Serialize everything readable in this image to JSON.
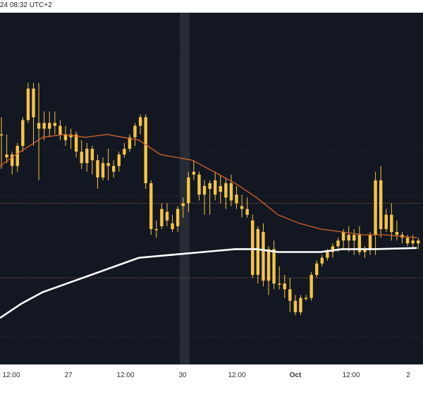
{
  "header": {
    "timestamp": "24 08:32 UTC+2"
  },
  "colors": {
    "background": "#131722",
    "candle_fill": "#f5c542",
    "candle_wick": "#f5c542",
    "ma_fast": "#d2622a",
    "ma_slow": "#ffffff",
    "level_line": "#b96a3a",
    "grid_line": "#2a2e39",
    "highlight_band": "#2b2f3a"
  },
  "chart_data": {
    "type": "candlestick",
    "x_tick_labels": [
      "12:00",
      "27",
      "12:00",
      "30",
      "12:00",
      "Oct",
      "12:00",
      "2"
    ],
    "candles": [
      [
        0.6,
        0.9,
        0.0,
        0.6
      ],
      [
        0.2,
        0.6,
        0.1,
        0.25
      ],
      [
        0.25,
        0.3,
        -0.1,
        0.05
      ],
      [
        0.05,
        0.45,
        -0.05,
        0.4
      ],
      [
        0.4,
        0.9,
        0.3,
        0.85
      ],
      [
        0.85,
        1.5,
        0.8,
        1.4
      ],
      [
        1.4,
        1.5,
        0.4,
        0.9
      ],
      [
        0.7,
        1.5,
        -0.2,
        0.8
      ],
      [
        0.8,
        1.0,
        0.5,
        0.7
      ],
      [
        0.7,
        1.0,
        0.55,
        0.8
      ],
      [
        0.8,
        1.0,
        0.6,
        0.75
      ],
      [
        0.75,
        0.85,
        0.5,
        0.6
      ],
      [
        0.6,
        0.75,
        0.4,
        0.5
      ],
      [
        0.55,
        0.7,
        0.35,
        0.6
      ],
      [
        0.6,
        0.65,
        0.2,
        0.3
      ],
      [
        0.3,
        0.5,
        0.0,
        0.1
      ],
      [
        0.1,
        0.45,
        -0.05,
        0.35
      ],
      [
        0.35,
        0.4,
        -0.1,
        0.15
      ],
      [
        0.15,
        0.25,
        -0.35,
        -0.15
      ],
      [
        -0.15,
        0.2,
        -0.2,
        0.1
      ],
      [
        0.1,
        0.35,
        -0.2,
        0.05
      ],
      [
        0.05,
        0.15,
        -0.15,
        -0.05
      ],
      [
        0.05,
        0.3,
        -0.05,
        0.25
      ],
      [
        0.25,
        0.45,
        0.2,
        0.35
      ],
      [
        0.35,
        0.6,
        0.3,
        0.55
      ],
      [
        0.55,
        0.8,
        0.4,
        0.75
      ],
      [
        0.75,
        0.95,
        0.6,
        0.9
      ],
      [
        0.9,
        0.95,
        -0.35,
        -0.25
      ],
      [
        -0.25,
        -0.2,
        -1.15,
        -1.05
      ],
      [
        -1.05,
        -0.9,
        -1.2,
        -1.05
      ],
      [
        -1.0,
        -0.6,
        -1.05,
        -0.7
      ],
      [
        -0.75,
        -0.6,
        -1.0,
        -0.9
      ],
      [
        -0.95,
        -0.8,
        -1.1,
        -1.05
      ],
      [
        -1.0,
        -0.65,
        -1.1,
        -0.7
      ],
      [
        -0.65,
        -0.5,
        -0.85,
        -0.6
      ],
      [
        -0.6,
        -0.05,
        -0.75,
        -0.15
      ],
      [
        -0.1,
        0.15,
        -0.2,
        -0.05
      ],
      [
        -0.1,
        -0.05,
        -0.55,
        -0.45
      ],
      [
        -0.45,
        -0.2,
        -0.8,
        -0.3
      ],
      [
        -0.35,
        -0.2,
        -0.8,
        -0.25
      ],
      [
        -0.2,
        -0.05,
        -0.55,
        -0.45
      ],
      [
        -0.3,
        -0.1,
        -0.6,
        -0.4
      ],
      [
        -0.5,
        -0.15,
        -0.7,
        -0.25
      ],
      [
        -0.25,
        -0.1,
        -0.65,
        -0.55
      ],
      [
        -0.45,
        -0.3,
        -0.7,
        -0.6
      ],
      [
        -0.65,
        -0.45,
        -0.85,
        -0.7
      ],
      [
        -0.7,
        -0.5,
        -0.85,
        -0.8
      ],
      [
        -0.9,
        -0.8,
        -1.9,
        -1.85
      ],
      [
        -1.85,
        -1.0,
        -2.0,
        -1.05
      ],
      [
        -1.1,
        -0.95,
        -2.05,
        -1.95
      ],
      [
        -1.95,
        -1.35,
        -2.2,
        -1.4
      ],
      [
        -1.4,
        -1.25,
        -2.1,
        -2.0
      ],
      [
        -2.0,
        -1.7,
        -2.1,
        -2.0
      ],
      [
        -2.0,
        -1.85,
        -2.25,
        -2.1
      ],
      [
        -2.1,
        -1.9,
        -2.5,
        -2.3
      ],
      [
        -2.3,
        -2.2,
        -2.55,
        -2.5
      ],
      [
        -2.5,
        -2.2,
        -2.55,
        -2.25
      ],
      [
        -2.25,
        -2.2,
        -2.3,
        -2.25
      ],
      [
        -2.25,
        -1.8,
        -2.3,
        -1.85
      ],
      [
        -1.85,
        -1.6,
        -1.9,
        -1.65
      ],
      [
        -1.65,
        -1.5,
        -1.7,
        -1.55
      ],
      [
        -1.55,
        -1.4,
        -1.6,
        -1.45
      ],
      [
        -1.45,
        -1.3,
        -1.55,
        -1.35
      ],
      [
        -1.35,
        -1.2,
        -1.45,
        -1.25
      ],
      [
        -1.25,
        -1.05,
        -1.4,
        -1.1
      ],
      [
        -1.15,
        -1.0,
        -1.45,
        -1.25
      ],
      [
        -1.25,
        -1.05,
        -1.5,
        -1.15
      ],
      [
        -1.15,
        -1.0,
        -1.5,
        -1.45
      ],
      [
        -1.45,
        -1.35,
        -1.55,
        -1.4
      ],
      [
        -1.4,
        -1.1,
        -1.5,
        -1.15
      ],
      [
        -1.15,
        -0.05,
        -1.5,
        -0.2
      ],
      [
        -0.2,
        0.05,
        -1.2,
        -1.05
      ],
      [
        -1.05,
        -0.7,
        -1.1,
        -0.8
      ],
      [
        -0.8,
        -0.6,
        -1.25,
        -1.1
      ],
      [
        -1.1,
        -0.9,
        -1.25,
        -1.15
      ],
      [
        -1.15,
        -1.1,
        -1.3,
        -1.2
      ],
      [
        -1.2,
        -1.15,
        -1.35,
        -1.3
      ],
      [
        -1.3,
        -1.15,
        -1.4,
        -1.25
      ],
      [
        -1.25,
        -1.2,
        -1.4,
        -1.3
      ]
    ],
    "ma_fast": [
      [
        0,
        0.05
      ],
      [
        3,
        0.25
      ],
      [
        8,
        0.55
      ],
      [
        12,
        0.6
      ],
      [
        16,
        0.55
      ],
      [
        20,
        0.6
      ],
      [
        26,
        0.5
      ],
      [
        30,
        0.25
      ],
      [
        36,
        0.15
      ],
      [
        40,
        -0.05
      ],
      [
        44,
        -0.25
      ],
      [
        48,
        -0.5
      ],
      [
        52,
        -0.8
      ],
      [
        56,
        -0.95
      ],
      [
        60,
        -1.05
      ],
      [
        64,
        -1.1
      ],
      [
        68,
        -1.15
      ],
      [
        72,
        -1.15
      ],
      [
        78,
        -1.2
      ]
    ],
    "ma_slow": [
      [
        0,
        -2.6
      ],
      [
        4,
        -2.35
      ],
      [
        8,
        -2.15
      ],
      [
        14,
        -1.95
      ],
      [
        20,
        -1.75
      ],
      [
        26,
        -1.55
      ],
      [
        32,
        -1.5
      ],
      [
        38,
        -1.45
      ],
      [
        44,
        -1.4
      ],
      [
        48,
        -1.4
      ],
      [
        52,
        -1.45
      ],
      [
        56,
        -1.45
      ],
      [
        60,
        -1.45
      ],
      [
        64,
        -1.4
      ],
      [
        70,
        -1.4
      ],
      [
        78,
        -1.38
      ]
    ],
    "horizontal_levels": [
      -0.6,
      -1.9
    ],
    "ylim": [
      -3.3,
      2.6
    ]
  }
}
